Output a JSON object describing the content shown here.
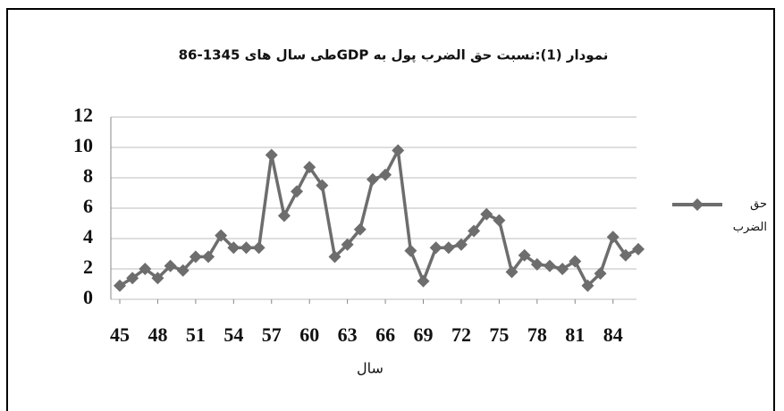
{
  "chart_data": {
    "type": "line",
    "title": "نمودار (1):نسبت حق الضرب پول به GDPطی سال های 1345-86",
    "x_label": "سال",
    "x": [
      45,
      46,
      47,
      48,
      49,
      50,
      51,
      52,
      53,
      54,
      55,
      56,
      57,
      58,
      59,
      60,
      61,
      62,
      63,
      64,
      65,
      66,
      67,
      68,
      69,
      70,
      71,
      72,
      73,
      74,
      75,
      76,
      77,
      78,
      79,
      80,
      81,
      82,
      83,
      84,
      85,
      86
    ],
    "series": [
      {
        "name": "حق الضرب",
        "color": "#6d6d6d",
        "values": [
          0.9,
          1.4,
          2.0,
          1.4,
          2.2,
          1.9,
          2.8,
          2.8,
          4.2,
          3.4,
          3.4,
          3.4,
          9.5,
          5.5,
          7.1,
          8.7,
          7.5,
          2.8,
          3.6,
          4.6,
          7.9,
          8.2,
          9.8,
          3.2,
          1.2,
          3.4,
          3.4,
          3.6,
          4.5,
          5.6,
          5.2,
          1.8,
          2.9,
          2.3,
          2.2,
          2.0,
          2.5,
          0.9,
          1.7,
          4.1,
          2.9,
          3.3
        ]
      }
    ],
    "xlim": [
      45,
      86
    ],
    "xticks": [
      45,
      48,
      51,
      54,
      57,
      60,
      63,
      66,
      69,
      72,
      75,
      78,
      81,
      84
    ],
    "ylim": [
      0,
      12
    ],
    "yticks": [
      0,
      2,
      4,
      6,
      8,
      10,
      12
    ],
    "grid": true,
    "legend": "right"
  }
}
